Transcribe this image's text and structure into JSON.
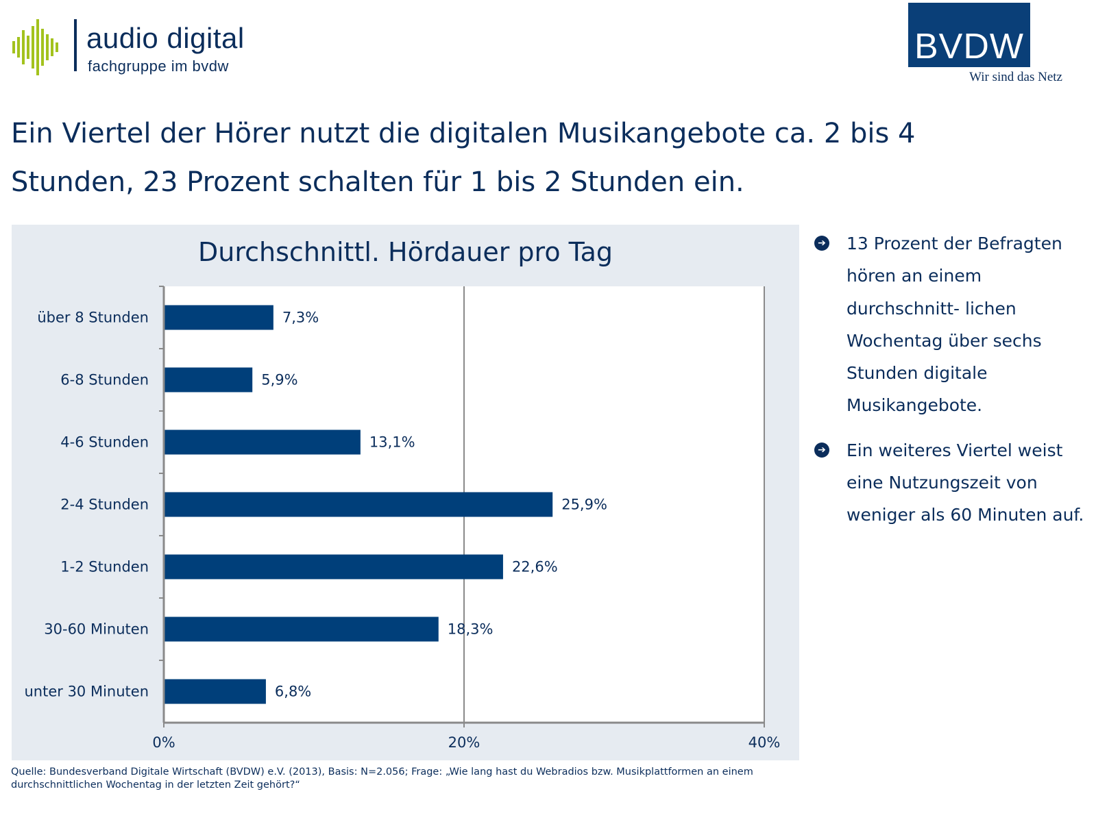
{
  "brand_left": {
    "name": "audio digital",
    "subtitle": "fachgruppe im bvdw"
  },
  "brand_right": {
    "name": "BVDW",
    "tagline": "Wir sind das Netz"
  },
  "headline": "Ein Viertel der Hörer nutzt die digitalen Musikangebote ca. 2 bis 4 Stunden, 23 Prozent schalten  für 1 bis 2 Stunden ein.",
  "bullets": [
    "13 Prozent der Befragten hören an einem durchschnitt- lichen Wochentag über sechs Stunden digitale Musikangebote.",
    "Ein weiteres Viertel weist eine Nutzungszeit von weniger als 60 Minuten auf."
  ],
  "source": "Quelle: Bundesverband Digitale Wirtschaft (BVDW) e.V. (2013), Basis: N=2.056;  Frage: „Wie lang hast du Webradios bzw. Musikplattformen an einem durchschnittlichen Wochentag in der letzten Zeit gehört?“",
  "colors": {
    "bar": "#003f7a",
    "text": "#0b2d5b",
    "panel": "#e6ebf1",
    "logo_accent": "#a3c21d"
  },
  "chart_data": {
    "type": "bar",
    "orientation": "horizontal",
    "title": "Durchschnittl. Hördauer pro Tag",
    "categories": [
      "über 8 Stunden",
      "6-8 Stunden",
      "4-6 Stunden",
      "2-4 Stunden",
      "1-2 Stunden",
      "30-60 Minuten",
      "unter 30 Minuten"
    ],
    "values": [
      7.3,
      5.9,
      13.1,
      25.9,
      22.6,
      18.3,
      6.8
    ],
    "value_labels": [
      "7,3%",
      "5,9%",
      "13,1%",
      "25,9%",
      "22,6%",
      "18,3%",
      "6,8%"
    ],
    "xlim": [
      0,
      40
    ],
    "x_ticks": [
      0,
      20,
      40
    ],
    "x_tick_labels": [
      "0%",
      "20%",
      "40%"
    ],
    "grid": "vertical-major",
    "xlabel": "",
    "ylabel": ""
  }
}
